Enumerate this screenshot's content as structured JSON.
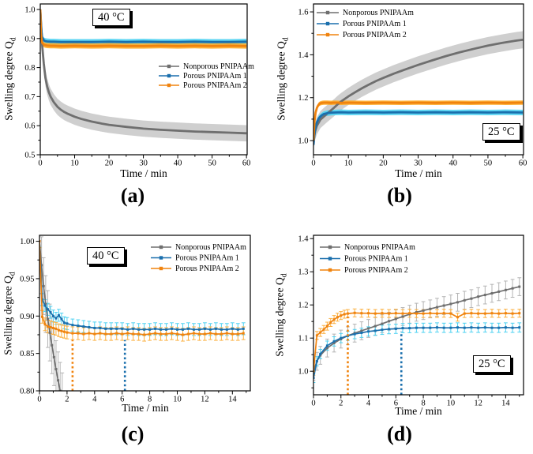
{
  "figure": {
    "background": "#ffffff",
    "frame_color": "#000000",
    "series_colors": {
      "nonporous_line": "#6f6f6f",
      "nonporous_err": "#c3c3c3",
      "porous1_line": "#1a6fad",
      "porous1_err": "#4ed2f2",
      "porous2_line": "#f0830e",
      "porous2_err": "#ffac28"
    }
  },
  "chart_data": [
    {
      "id": "a",
      "type": "line",
      "panel_label": "(a)",
      "temp_label": "40 °C",
      "xlabel": "Time / min",
      "ylabel": "Swelling degree Q",
      "ylabel_sub": "d",
      "xlim": [
        0,
        60.2
      ],
      "ylim": [
        0.5,
        1.019
      ],
      "xticks": [
        0,
        10,
        20,
        30,
        40,
        50,
        60
      ],
      "yticks": [
        0.5,
        0.6,
        0.7,
        0.8,
        0.9,
        1.0
      ],
      "xminor": 5,
      "yminor": 0.05,
      "ytick_decimals": 1,
      "grid": false,
      "legend_position": "right-center",
      "error_style": "band",
      "series": [
        {
          "name": "Nonporous PNIPAAm",
          "color": "#6f6f6f",
          "err_color": "#c3c3c3",
          "err": 0.028,
          "x": [
            0,
            0.3,
            0.6,
            1,
            1.5,
            2,
            2.5,
            3,
            3.5,
            4,
            5,
            6,
            7,
            8,
            10,
            12,
            15,
            18,
            20,
            25,
            30,
            35,
            40,
            45,
            50,
            55,
            60
          ],
          "y": [
            1.0,
            0.935,
            0.87,
            0.815,
            0.765,
            0.735,
            0.715,
            0.7,
            0.69,
            0.68,
            0.665,
            0.655,
            0.647,
            0.641,
            0.631,
            0.623,
            0.614,
            0.607,
            0.603,
            0.596,
            0.59,
            0.586,
            0.583,
            0.58,
            0.578,
            0.576,
            0.574
          ]
        },
        {
          "name": "Porous PNIPAAm 1",
          "color": "#1a6fad",
          "err_color": "#4ed2f2",
          "err": 0.01,
          "x": [
            0,
            0.2,
            0.5,
            1,
            1.5,
            2,
            3,
            4,
            6,
            10,
            15,
            20,
            25,
            30,
            35,
            40,
            45,
            50,
            55,
            60
          ],
          "y": [
            1.0,
            0.945,
            0.906,
            0.894,
            0.891,
            0.89,
            0.889,
            0.889,
            0.888,
            0.888,
            0.888,
            0.889,
            0.888,
            0.889,
            0.888,
            0.888,
            0.889,
            0.888,
            0.888,
            0.889
          ]
        },
        {
          "name": "Porous PNIPAAm 2",
          "color": "#f0830e",
          "err_color": "#ffac28",
          "err": 0.009,
          "x": [
            0,
            0.2,
            0.5,
            1,
            1.5,
            2,
            3,
            4,
            6,
            10,
            15,
            20,
            25,
            30,
            35,
            40,
            45,
            50,
            55,
            60
          ],
          "y": [
            1.0,
            0.915,
            0.886,
            0.879,
            0.877,
            0.876,
            0.875,
            0.875,
            0.874,
            0.875,
            0.874,
            0.875,
            0.874,
            0.874,
            0.875,
            0.874,
            0.875,
            0.874,
            0.875,
            0.874
          ]
        }
      ],
      "dotted_lines": []
    },
    {
      "id": "b",
      "type": "line",
      "panel_label": "(b)",
      "temp_label": "25 °C",
      "xlabel": "Time / min",
      "ylabel": "Swelling degree Q",
      "ylabel_sub": "d",
      "xlim": [
        0,
        60.2
      ],
      "ylim": [
        0.934,
        1.637
      ],
      "xticks": [
        0,
        10,
        20,
        30,
        40,
        50,
        60
      ],
      "yticks": [
        1.0,
        1.2,
        1.4,
        1.6
      ],
      "xminor": 5,
      "yminor": 0.1,
      "ytick_decimals": 1,
      "grid": false,
      "legend_position": "top-left",
      "error_style": "band",
      "series": [
        {
          "name": "Nonporous PNIPAAm",
          "color": "#6f6f6f",
          "err_color": "#c3c3c3",
          "err": 0.04,
          "x": [
            0,
            0.5,
            1,
            2,
            3,
            4,
            5,
            6,
            7,
            8,
            10,
            12,
            14,
            16,
            18,
            20,
            23,
            26,
            30,
            34,
            38,
            42,
            46,
            50,
            54,
            58,
            60
          ],
          "y": [
            1.0,
            1.045,
            1.07,
            1.098,
            1.113,
            1.127,
            1.141,
            1.155,
            1.17,
            1.183,
            1.206,
            1.226,
            1.245,
            1.262,
            1.278,
            1.292,
            1.312,
            1.33,
            1.353,
            1.374,
            1.394,
            1.412,
            1.428,
            1.443,
            1.455,
            1.466,
            1.47
          ]
        },
        {
          "name": "Porous PNIPAAm 1",
          "color": "#1a6fad",
          "err_color": "#4ed2f2",
          "err": 0.013,
          "x": [
            0,
            0.3,
            0.6,
            1,
            1.5,
            2,
            2.5,
            3,
            4,
            5,
            6,
            8,
            10,
            15,
            20,
            25,
            30,
            35,
            40,
            45,
            50,
            55,
            60
          ],
          "y": [
            0.98,
            1.035,
            1.063,
            1.086,
            1.103,
            1.112,
            1.119,
            1.124,
            1.128,
            1.13,
            1.131,
            1.132,
            1.131,
            1.132,
            1.131,
            1.132,
            1.131,
            1.132,
            1.131,
            1.132,
            1.131,
            1.132,
            1.131
          ]
        },
        {
          "name": "Porous PNIPAAm 2",
          "color": "#f0830e",
          "err_color": "#ffac28",
          "err": 0.01,
          "x": [
            0,
            0.3,
            0.6,
            1,
            1.3,
            1.6,
            2,
            2.5,
            3,
            4,
            5,
            6,
            8,
            10,
            15,
            20,
            25,
            30,
            35,
            40,
            45,
            50,
            55,
            60
          ],
          "y": [
            1.0,
            1.09,
            1.131,
            1.153,
            1.163,
            1.17,
            1.174,
            1.176,
            1.177,
            1.177,
            1.176,
            1.177,
            1.176,
            1.177,
            1.176,
            1.177,
            1.176,
            1.177,
            1.176,
            1.177,
            1.176,
            1.177,
            1.176,
            1.177
          ]
        }
      ],
      "dotted_lines": []
    },
    {
      "id": "c",
      "type": "line",
      "panel_label": "(c)",
      "temp_label": "40 °C",
      "xlabel": "Time / min",
      "ylabel": "Swelling degree Q",
      "ylabel_sub": "d",
      "xlim": [
        0,
        15.3
      ],
      "ylim": [
        0.8,
        1.008
      ],
      "xticks": [
        0,
        2,
        4,
        6,
        8,
        10,
        12,
        14
      ],
      "yticks": [
        0.8,
        0.85,
        0.9,
        0.95,
        1.0
      ],
      "xminor": 1,
      "yminor": 0.025,
      "ytick_decimals": 2,
      "grid": false,
      "legend_position": "top-right",
      "error_style": "bars",
      "series": [
        {
          "name": "Nonporous PNIPAAm",
          "color": "#6f6f6f",
          "err_color": "#b4b4b4",
          "err": 0.038,
          "x": [
            0,
            0.15,
            0.3,
            0.45,
            0.6,
            0.75,
            0.9,
            1.05,
            1.2,
            1.35,
            1.5,
            1.65
          ],
          "y": [
            1.0,
            0.968,
            0.94,
            0.916,
            0.896,
            0.878,
            0.861,
            0.845,
            0.829,
            0.814,
            0.8,
            0.786
          ]
        },
        {
          "name": "Porous PNIPAAm 1",
          "color": "#1a6fad",
          "err_color": "#4ed2f2",
          "err": 0.008,
          "x": [
            0,
            0.2,
            0.4,
            0.6,
            0.8,
            1,
            1.2,
            1.4,
            1.6,
            1.8,
            2,
            2.4,
            2.8,
            3.2,
            3.6,
            4,
            4.4,
            4.8,
            5.2,
            5.6,
            6,
            6.4,
            6.8,
            7.2,
            7.6,
            8,
            8.4,
            8.8,
            9.2,
            9.6,
            10,
            10.4,
            10.8,
            11.2,
            11.6,
            12,
            12.4,
            12.8,
            13.2,
            13.6,
            14,
            14.4,
            14.8
          ],
          "y": [
            1.0,
            0.922,
            0.914,
            0.909,
            0.905,
            0.9,
            0.897,
            0.901,
            0.896,
            0.891,
            0.89,
            0.888,
            0.887,
            0.886,
            0.885,
            0.884,
            0.884,
            0.883,
            0.883,
            0.883,
            0.883,
            0.882,
            0.883,
            0.882,
            0.882,
            0.882,
            0.883,
            0.882,
            0.882,
            0.883,
            0.882,
            0.882,
            0.883,
            0.882,
            0.882,
            0.883,
            0.882,
            0.883,
            0.882,
            0.882,
            0.883,
            0.882,
            0.883
          ]
        },
        {
          "name": "Porous PNIPAAm 2",
          "color": "#f0830e",
          "err_color": "#fbb040",
          "err": 0.0085,
          "x": [
            0,
            0.2,
            0.4,
            0.6,
            0.8,
            1,
            1.2,
            1.4,
            1.6,
            1.8,
            2,
            2.4,
            2.8,
            3.2,
            3.6,
            4,
            4.4,
            4.8,
            5.2,
            5.6,
            6,
            6.4,
            6.8,
            7.2,
            7.6,
            8,
            8.4,
            8.8,
            9.2,
            9.6,
            10,
            10.4,
            10.8,
            11.2,
            11.6,
            12,
            12.4,
            12.8,
            13.2,
            13.6,
            14,
            14.4,
            14.8
          ],
          "y": [
            1.0,
            0.899,
            0.889,
            0.886,
            0.885,
            0.884,
            0.883,
            0.881,
            0.88,
            0.879,
            0.878,
            0.877,
            0.877,
            0.876,
            0.877,
            0.876,
            0.877,
            0.876,
            0.876,
            0.877,
            0.876,
            0.877,
            0.876,
            0.876,
            0.875,
            0.876,
            0.877,
            0.876,
            0.876,
            0.877,
            0.876,
            0.875,
            0.876,
            0.877,
            0.876,
            0.876,
            0.877,
            0.876,
            0.876,
            0.877,
            0.876,
            0.876,
            0.877
          ]
        }
      ],
      "dotted_lines": [
        {
          "x": 2.4,
          "y_top": 0.868,
          "color": "#f0830e",
          "series": "Porous PNIPAAm 2"
        },
        {
          "x": 6.2,
          "y_top": 0.868,
          "color": "#1a6fad",
          "series": "Porous PNIPAAm 1"
        }
      ]
    },
    {
      "id": "d",
      "type": "line",
      "panel_label": "(d)",
      "temp_label": "25 °C",
      "xlabel": "Time / min",
      "ylabel": "Swelling degree Q",
      "ylabel_sub": "d",
      "xlim": [
        0,
        15.3
      ],
      "ylim": [
        0.929,
        1.41
      ],
      "xticks": [
        0,
        2,
        4,
        6,
        8,
        10,
        12,
        14
      ],
      "yticks": [
        1.0,
        1.1,
        1.2,
        1.3,
        1.4
      ],
      "xminor": 1,
      "yminor": 0.05,
      "ytick_decimals": 1,
      "grid": false,
      "legend_position": "top-left",
      "error_style": "bars",
      "series": [
        {
          "name": "Nonporous PNIPAAm",
          "color": "#6f6f6f",
          "err_color": "#b4b4b4",
          "err": 0.027,
          "x": [
            0,
            0.25,
            0.5,
            1,
            1.5,
            2,
            2.5,
            3,
            3.5,
            4,
            4.5,
            5,
            5.5,
            6,
            6.5,
            7,
            7.5,
            8,
            8.5,
            9,
            9.5,
            10,
            10.5,
            11,
            11.5,
            12,
            12.5,
            13,
            13.5,
            14,
            14.5,
            15
          ],
          "y": [
            1.0,
            1.03,
            1.048,
            1.07,
            1.085,
            1.097,
            1.107,
            1.115,
            1.122,
            1.129,
            1.136,
            1.143,
            1.151,
            1.158,
            1.165,
            1.172,
            1.178,
            1.183,
            1.188,
            1.193,
            1.198,
            1.203,
            1.208,
            1.214,
            1.219,
            1.225,
            1.23,
            1.235,
            1.24,
            1.245,
            1.25,
            1.255
          ]
        },
        {
          "name": "Porous PNIPAAm 1",
          "color": "#1a6fad",
          "err_color": "#4ed2f2",
          "err": 0.014,
          "x": [
            0,
            0.25,
            0.5,
            1,
            1.5,
            2,
            2.5,
            3,
            3.5,
            4,
            4.5,
            5,
            5.5,
            6,
            6.5,
            7,
            7.5,
            8,
            8.5,
            9,
            9.5,
            10,
            10.5,
            11,
            11.5,
            12,
            12.5,
            13,
            13.5,
            14,
            14.5,
            15
          ],
          "y": [
            0.98,
            1.03,
            1.052,
            1.077,
            1.09,
            1.1,
            1.107,
            1.112,
            1.116,
            1.12,
            1.122,
            1.125,
            1.127,
            1.128,
            1.13,
            1.13,
            1.131,
            1.131,
            1.131,
            1.132,
            1.131,
            1.131,
            1.132,
            1.131,
            1.132,
            1.131,
            1.132,
            1.131,
            1.131,
            1.132,
            1.131,
            1.132
          ]
        },
        {
          "name": "Porous PNIPAAm 2",
          "color": "#f0830e",
          "err_color": "#fbb040",
          "err": 0.012,
          "x": [
            0,
            0.25,
            0.5,
            0.75,
            1,
            1.25,
            1.5,
            1.75,
            2,
            2.25,
            2.5,
            3,
            3.5,
            4,
            4.5,
            5,
            5.5,
            6,
            6.5,
            7,
            7.5,
            8,
            8.5,
            9,
            9.5,
            10,
            10.5,
            11,
            11.5,
            12,
            12.5,
            13,
            13.5,
            14,
            14.5,
            15
          ],
          "y": [
            1.0,
            1.108,
            1.117,
            1.126,
            1.136,
            1.147,
            1.156,
            1.163,
            1.168,
            1.172,
            1.174,
            1.176,
            1.175,
            1.175,
            1.174,
            1.175,
            1.174,
            1.175,
            1.174,
            1.175,
            1.174,
            1.174,
            1.175,
            1.174,
            1.175,
            1.174,
            1.163,
            1.174,
            1.175,
            1.174,
            1.174,
            1.175,
            1.174,
            1.175,
            1.174,
            1.175
          ]
        }
      ],
      "dotted_lines": [
        {
          "x": 2.5,
          "y_top": 1.165,
          "color": "#f0830e",
          "series": "Porous PNIPAAm 2"
        },
        {
          "x": 6.4,
          "y_top": 1.12,
          "color": "#1a6fad",
          "series": "Porous PNIPAAm 1"
        }
      ]
    }
  ]
}
